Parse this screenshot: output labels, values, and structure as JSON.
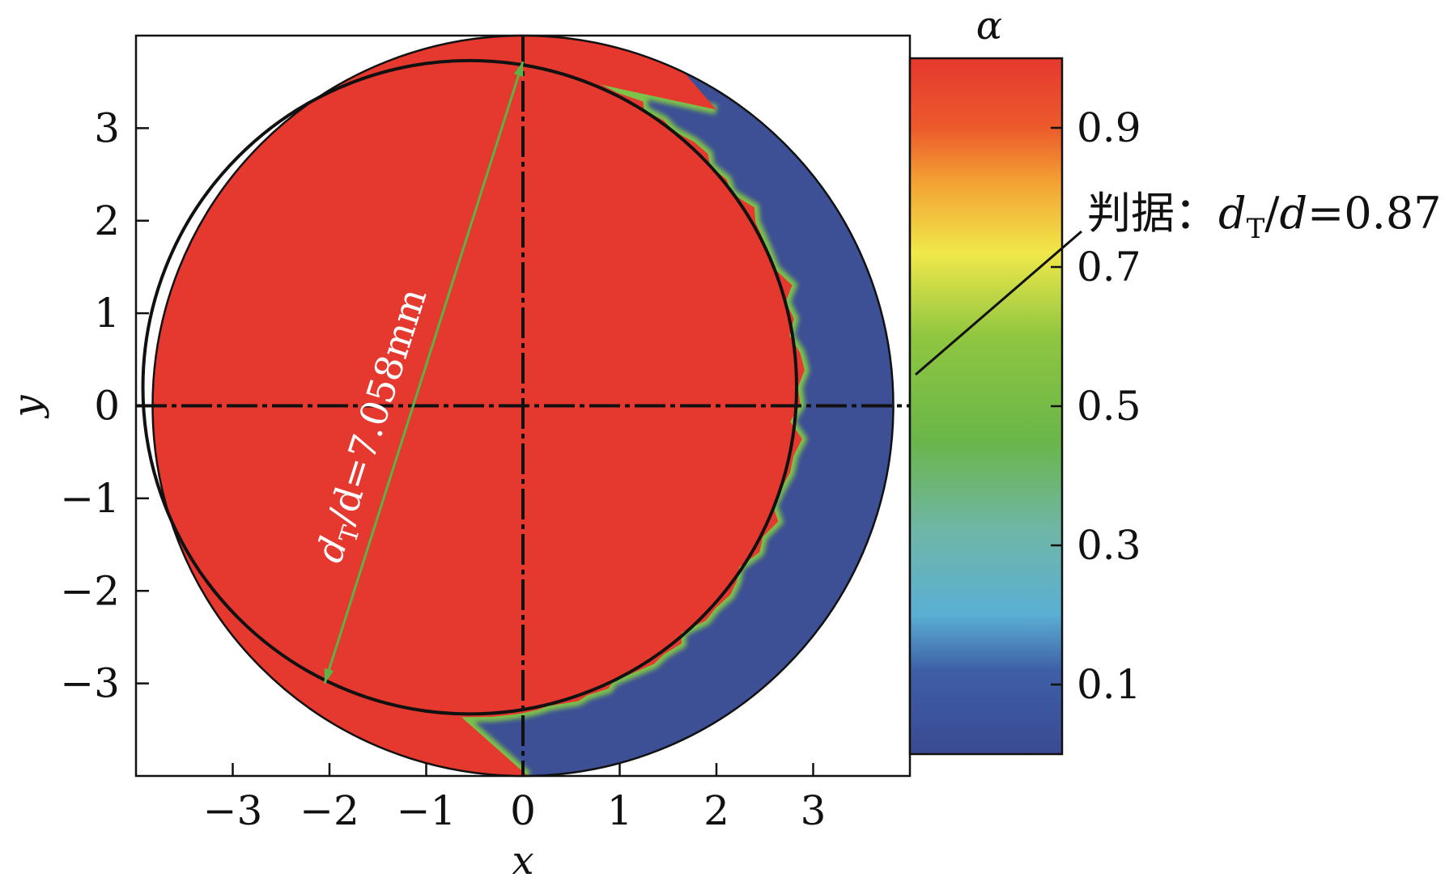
{
  "chart_data": {
    "type": "heatmap",
    "title": "",
    "xlabel": "x",
    "ylabel": "y",
    "xlim": [
      -4,
      4
    ],
    "ylim": [
      -4,
      4
    ],
    "xticks": [
      -3,
      -2,
      -1,
      0,
      1,
      2,
      3
    ],
    "yticks": [
      -3,
      -2,
      -1,
      0,
      1,
      2,
      3
    ],
    "x_tick_labels": [
      "−3",
      "−2",
      "−1",
      "0",
      "1",
      "2",
      "3"
    ],
    "y_tick_labels": [
      "−3",
      "−2",
      "−1",
      "0",
      "1",
      "2",
      "3"
    ],
    "grid": false,
    "outer_circle": {
      "center": [
        0,
        0
      ],
      "radius": 4.0
    },
    "inner_circle": {
      "center": [
        -0.55,
        0.2
      ],
      "radius": 3.53
    },
    "colorbar": {
      "label": "α",
      "range": [
        0,
        1
      ],
      "ticks": [
        0.1,
        0.3,
        0.5,
        0.7,
        0.9
      ],
      "tick_labels": [
        "0.1",
        "0.3",
        "0.5",
        "0.7",
        "0.9"
      ],
      "colors": [
        "#3a4e96",
        "#5aafd4",
        "#6ab64a",
        "#f0e84a",
        "#e5382e"
      ]
    },
    "regions": [
      {
        "alpha": 1.0,
        "color": "#e5382e"
      },
      {
        "alpha": 0.0,
        "color": "#3d4f95"
      }
    ],
    "annotations": {
      "diameter_label": {
        "prefix": "d",
        "sub": "T",
        "suffix": "/d=7.058mm",
        "from": [
          -2.05,
          -3.0
        ],
        "to": [
          0.0,
          3.72
        ]
      },
      "criterion_label": {
        "prefix": "判据：",
        "var1": "d",
        "sub": "T",
        "slash": "/",
        "var2": "d",
        "value": "=0.87"
      }
    }
  }
}
